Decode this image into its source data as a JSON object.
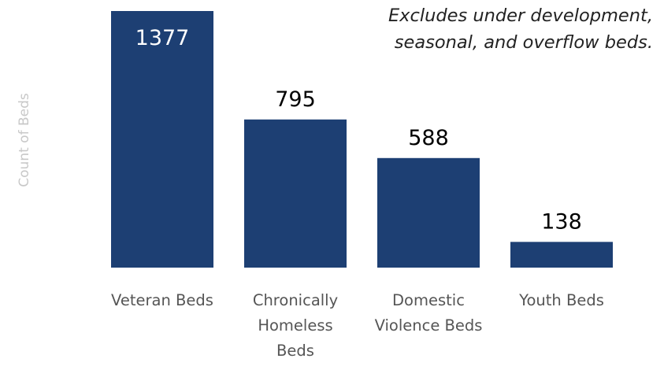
{
  "chart_data": {
    "type": "bar",
    "categories": [
      "Veteran Beds",
      "Chronically Homeless Beds",
      "Domestic Violence Beds",
      "Youth Beds"
    ],
    "category_lines": [
      [
        "Veteran Beds"
      ],
      [
        "Chronically",
        "Homeless",
        "Beds"
      ],
      [
        "Domestic",
        "Violence Beds"
      ],
      [
        "Youth Beds"
      ]
    ],
    "values": [
      1377,
      795,
      588,
      138
    ],
    "data_labels": [
      "1377",
      "795",
      "588",
      "138"
    ],
    "title": "",
    "xlabel": "",
    "ylabel": "Count of Beds",
    "ylim": [
      0,
      1377
    ],
    "grid": false,
    "legend": "none",
    "annotation": [
      "Excludes under development,",
      "seasonal, and overflow beds."
    ]
  },
  "colors": {
    "bar": "#1d3f73",
    "label_inside": "#ffffff",
    "label_outside": "#000000",
    "category_text": "#555555",
    "axis_title": "#c8c8c8",
    "note": "#222222"
  }
}
